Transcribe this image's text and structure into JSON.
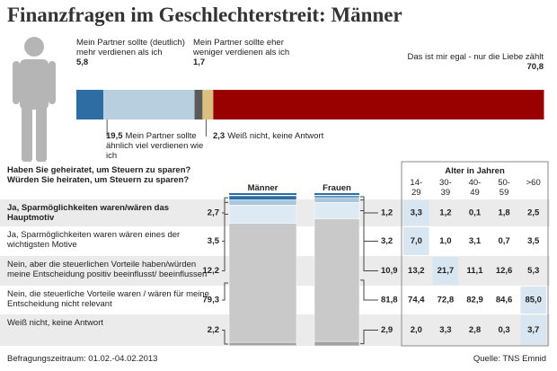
{
  "title": "Finanzfragen im Geschlechterstreit: Männer",
  "chart_data": [
    {
      "type": "stacked-bar-h",
      "xlim": [
        0,
        100
      ],
      "series": [
        {
          "name": "Mein Partner sollte (deutlich) mehr verdienen als ich",
          "color": "#2e6da4",
          "values": [
            5.8
          ],
          "value_labels": [
            "5,8"
          ]
        },
        {
          "name": "Mein Partner sollte ähnlich viel verdienen wie ich",
          "color": "#b7cfdf",
          "values": [
            19.5
          ],
          "value_labels": [
            "19,5"
          ]
        },
        {
          "name": "Mein Partner sollte eher weniger verdienen als ich",
          "color": "#5a5a5a",
          "values": [
            1.7
          ],
          "value_labels": [
            "1,7"
          ]
        },
        {
          "name": "Weiß nicht, keine Antwort",
          "color": "#dcc07f",
          "values": [
            2.3
          ],
          "value_labels": [
            "2,3"
          ]
        },
        {
          "name": "Das ist mir egal - nur die Liebe zählt",
          "color": "#990000",
          "values": [
            70.8
          ],
          "value_labels": [
            "70,8"
          ]
        }
      ]
    },
    {
      "type": "stacked-column",
      "question": [
        "Haben Sie geheiratet, um Steuern zu sparen?",
        "Würden Sie heiraten, um Steuern zu sparen?"
      ],
      "categories": [
        "Männer",
        "Frauen"
      ],
      "ylim": [
        0,
        100
      ],
      "series": [
        {
          "name": "Ja, Sparmöglichkeiten waren/wären das Hauptmotiv",
          "color": "#2e6da4",
          "values": [
            2.7,
            1.2
          ],
          "value_labels": [
            "2,7",
            "1,2"
          ]
        },
        {
          "name": "Ja, Sparmöglichkeiten waren wären eines der wichtigsten Motive",
          "color": "#a9c6dc",
          "values": [
            3.5,
            3.2
          ],
          "value_labels": [
            "3,5",
            "3,2"
          ]
        },
        {
          "name": "Nein, aber die steuerlichen Vorteile haben/würden meine Entscheidung positiv beeinflusst/ beeinflussen",
          "color": "#dde9f3",
          "values": [
            12.2,
            10.9
          ],
          "value_labels": [
            "12,2",
            "10,9"
          ]
        },
        {
          "name": "Nein, die steuerliche Vorteile waren / wären für meine Entscheidung nicht relevant",
          "color": "#c9c9c9",
          "values": [
            79.3,
            81.8
          ],
          "value_labels": [
            "79,3",
            "81,8"
          ]
        },
        {
          "name": "Weiß nicht, keine Antwort",
          "color": "#a3a3a3",
          "values": [
            2.2,
            2.9
          ],
          "value_labels": [
            "2,2",
            "2,9"
          ]
        }
      ]
    }
  ],
  "table": {
    "title": "Alter in Jahren",
    "columns": [
      [
        "14-",
        "29"
      ],
      [
        "30-",
        "39"
      ],
      [
        "40-",
        "49"
      ],
      [
        "50-",
        "59"
      ],
      [
        ">60"
      ]
    ],
    "rows": [
      [
        "3,3",
        "1,2",
        "0,1",
        "1,8",
        "2,5"
      ],
      [
        "7,0",
        "1,0",
        "3,1",
        "0,7",
        "3,5"
      ],
      [
        "13,2",
        "21,7",
        "11,1",
        "12,6",
        "5,3"
      ],
      [
        "74,4",
        "72,8",
        "82,9",
        "84,6",
        "85,0"
      ],
      [
        "2,0",
        "3,3",
        "2,8",
        "0,3",
        "3,7"
      ]
    ],
    "highlight": [
      [
        0,
        0
      ],
      [
        1,
        0
      ],
      [
        2,
        1
      ],
      [
        3,
        4
      ],
      [
        4,
        4
      ]
    ]
  },
  "footer": {
    "period": "Befragungszeitraum: 01.02.-04.02.2013",
    "source": "Quelle: TNS Emnid"
  }
}
